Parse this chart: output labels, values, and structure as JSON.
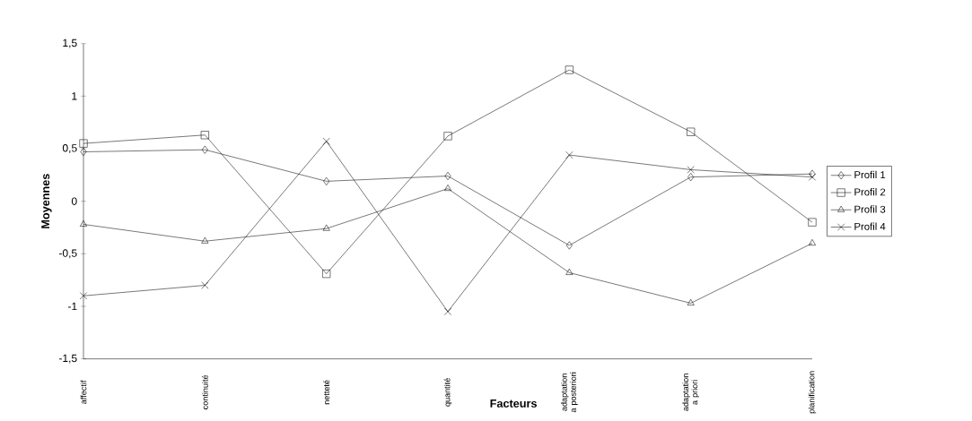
{
  "chart_data": {
    "type": "line",
    "xlabel": "Facteurs",
    "ylabel": "Moyennes",
    "categories": [
      "affectif",
      "continuité",
      "netteté",
      "quantité",
      "adaptation a posteriori",
      "adaptation a priori",
      "planification"
    ],
    "series": [
      {
        "name": "Profil 1",
        "color": "#000000",
        "marker": "diamond",
        "values": [
          0.47,
          0.49,
          0.19,
          0.24,
          -0.42,
          0.23,
          0.26
        ]
      },
      {
        "name": "Profil 2",
        "color": "#000000",
        "marker": "square",
        "values": [
          0.55,
          0.63,
          -0.69,
          0.62,
          1.25,
          0.66,
          -0.2
        ]
      },
      {
        "name": "Profil 3",
        "color": "#000000",
        "marker": "triangle",
        "values": [
          -0.22,
          -0.38,
          -0.26,
          0.12,
          -0.68,
          -0.97,
          -0.4
        ]
      },
      {
        "name": "Profil 4",
        "color": "#000000",
        "marker": "cross",
        "values": [
          -0.9,
          -0.8,
          0.57,
          -1.05,
          0.44,
          0.3,
          0.23
        ]
      }
    ],
    "ylim": [
      -1.5,
      1.5
    ],
    "yticks": [
      {
        "value": -1.5,
        "label": "-1,5"
      },
      {
        "value": -1,
        "label": "-1"
      },
      {
        "value": -0.5,
        "label": "-0,5"
      },
      {
        "value": 0,
        "label": "0"
      },
      {
        "value": 0.5,
        "label": "0,5"
      },
      {
        "value": 1,
        "label": "1"
      },
      {
        "value": 1.5,
        "label": "1,5"
      }
    ],
    "grid": false,
    "legend": "right",
    "line_style": "solid"
  }
}
